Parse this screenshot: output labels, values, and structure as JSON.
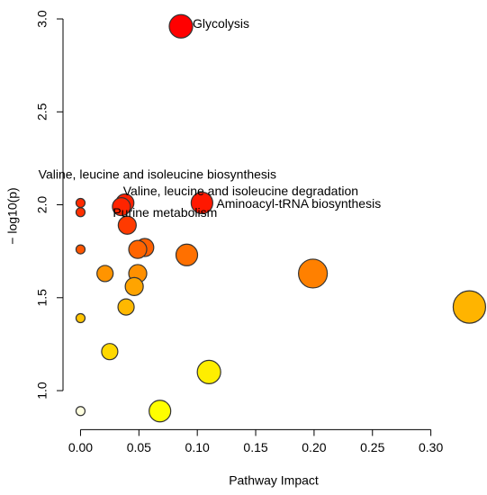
{
  "chart_data": {
    "type": "scatter",
    "x_label": "Pathway Impact",
    "y_label": "− log10(p)",
    "xlim": [
      -0.015,
      0.345
    ],
    "ylim": [
      0.79,
      3.05
    ],
    "xticks": [
      {
        "value": 0,
        "label": "0.00"
      },
      {
        "value": 0.05,
        "label": "0.05"
      },
      {
        "value": 0.1,
        "label": "0.10"
      },
      {
        "value": 0.15,
        "label": "0.15"
      },
      {
        "value": 0.2,
        "label": "0.20"
      },
      {
        "value": 0.25,
        "label": "0.25"
      },
      {
        "value": 0.3,
        "label": "0.30"
      }
    ],
    "yticks": [
      {
        "value": 1,
        "label": "1.0"
      },
      1.5,
      {
        "value": 2,
        "label": "2.0"
      },
      2.5,
      {
        "value": 3,
        "label": "3.0"
      }
    ],
    "x": [
      0.086,
      0.038,
      0.035,
      0.104,
      0.04,
      0,
      0,
      0,
      0.055,
      0.049,
      0.091,
      0.199,
      0.021,
      0.049,
      0.046,
      0.333,
      0.039,
      0,
      0.025,
      0.11,
      0.068,
      0
    ],
    "values": [
      2.96,
      2.01,
      1.99,
      2.01,
      1.89,
      2.01,
      1.96,
      1.76,
      1.77,
      1.76,
      1.73,
      1.63,
      1.63,
      1.63,
      1.56,
      1.45,
      1.45,
      1.39,
      1.21,
      1.1,
      0.89,
      0.89
    ],
    "sizes": [
      13,
      10,
      10,
      12,
      10,
      5,
      5,
      5,
      10,
      10,
      12,
      16,
      9,
      10,
      10,
      18,
      9,
      5,
      9,
      13,
      12,
      5
    ],
    "colors": [
      "#ff0000",
      "#ff2000",
      "#ff2400",
      "#ff1800",
      "#ff3a00",
      "#ff2a00",
      "#ff3000",
      "#ff5500",
      "#ff6000",
      "#ff6400",
      "#ff7000",
      "#ff8000",
      "#ff9400",
      "#ff9000",
      "#ffa400",
      "#ffb400",
      "#ffb800",
      "#ffc400",
      "#ffd800",
      "#ffee00",
      "#ffff00",
      "#ffffe0"
    ],
    "annotations": [
      {
        "text": "Glycolysis",
        "point": 0
      },
      {
        "text": "Valine, leucine and isoleucine biosynthesis",
        "point": 2
      },
      {
        "text": "Valine, leucine and isoleucine degradation",
        "point": 1
      },
      {
        "text": "Aminoacyl-tRNA biosynthesis",
        "point": 3
      },
      {
        "text": "Purine metabolism",
        "point": 4
      }
    ]
  }
}
